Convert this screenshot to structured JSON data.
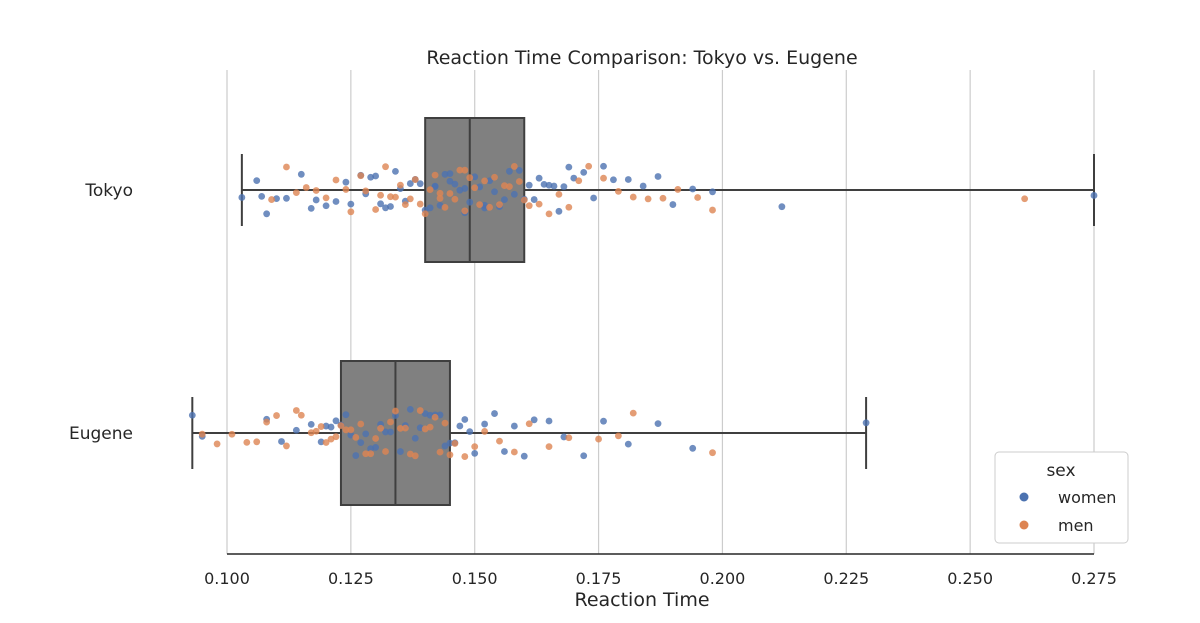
{
  "chart_data": {
    "type": "box",
    "title": "Reaction Time Comparison: Tokyo vs. Eugene",
    "xlabel": "Reaction Time",
    "ylabel": "",
    "xlim": [
      0.093,
      0.276
    ],
    "xticks": [
      0.1,
      0.125,
      0.15,
      0.175,
      0.2,
      0.225,
      0.25,
      0.275
    ],
    "xtick_labels": [
      "0.100",
      "0.125",
      "0.150",
      "0.175",
      "0.200",
      "0.225",
      "0.250",
      "0.275"
    ],
    "categories": [
      "Tokyo",
      "Eugene"
    ],
    "grid": "vertical",
    "box_color": "#808080",
    "boxes": [
      {
        "category": "Tokyo",
        "whisker_low": 0.103,
        "q1": 0.14,
        "median": 0.149,
        "q3": 0.16,
        "whisker_high": 0.275
      },
      {
        "category": "Eugene",
        "whisker_low": 0.093,
        "q1": 0.123,
        "median": 0.134,
        "q3": 0.145,
        "whisker_high": 0.229
      }
    ],
    "legend": {
      "title": "sex",
      "position": "lower-right",
      "entries": [
        {
          "label": "women",
          "color": "#4c72b0"
        },
        {
          "label": "men",
          "color": "#dd8452"
        }
      ]
    },
    "points": [
      {
        "category": "Tokyo",
        "sex": "women",
        "values": [
          0.103,
          0.106,
          0.107,
          0.108,
          0.11,
          0.112,
          0.115,
          0.117,
          0.118,
          0.12,
          0.122,
          0.124,
          0.125,
          0.127,
          0.128,
          0.129,
          0.13,
          0.131,
          0.132,
          0.133,
          0.134,
          0.135,
          0.136,
          0.137,
          0.138,
          0.139,
          0.14,
          0.141,
          0.142,
          0.142,
          0.143,
          0.144,
          0.145,
          0.145,
          0.146,
          0.147,
          0.148,
          0.148,
          0.149,
          0.15,
          0.151,
          0.152,
          0.152,
          0.153,
          0.154,
          0.155,
          0.156,
          0.157,
          0.158,
          0.159,
          0.16,
          0.161,
          0.162,
          0.163,
          0.164,
          0.165,
          0.166,
          0.167,
          0.168,
          0.169,
          0.17,
          0.172,
          0.174,
          0.176,
          0.178,
          0.181,
          0.184,
          0.187,
          0.19,
          0.194,
          0.198,
          0.212,
          0.275
        ]
      },
      {
        "category": "Tokyo",
        "sex": "men",
        "values": [
          0.109,
          0.112,
          0.114,
          0.116,
          0.118,
          0.12,
          0.122,
          0.124,
          0.125,
          0.127,
          0.128,
          0.13,
          0.131,
          0.132,
          0.133,
          0.134,
          0.135,
          0.136,
          0.137,
          0.138,
          0.139,
          0.14,
          0.141,
          0.142,
          0.143,
          0.143,
          0.144,
          0.145,
          0.146,
          0.147,
          0.148,
          0.148,
          0.149,
          0.15,
          0.151,
          0.152,
          0.153,
          0.154,
          0.155,
          0.156,
          0.157,
          0.158,
          0.159,
          0.16,
          0.161,
          0.163,
          0.165,
          0.167,
          0.169,
          0.171,
          0.173,
          0.176,
          0.179,
          0.182,
          0.185,
          0.188,
          0.191,
          0.195,
          0.198,
          0.261
        ]
      },
      {
        "category": "Eugene",
        "sex": "women",
        "values": [
          0.093,
          0.095,
          0.108,
          0.111,
          0.114,
          0.117,
          0.119,
          0.12,
          0.121,
          0.122,
          0.123,
          0.124,
          0.125,
          0.126,
          0.127,
          0.128,
          0.129,
          0.13,
          0.131,
          0.132,
          0.133,
          0.134,
          0.135,
          0.136,
          0.137,
          0.138,
          0.139,
          0.14,
          0.141,
          0.142,
          0.143,
          0.144,
          0.145,
          0.146,
          0.147,
          0.148,
          0.149,
          0.15,
          0.152,
          0.154,
          0.156,
          0.158,
          0.16,
          0.162,
          0.165,
          0.168,
          0.172,
          0.176,
          0.181,
          0.187,
          0.194,
          0.229
        ]
      },
      {
        "category": "Eugene",
        "sex": "men",
        "values": [
          0.095,
          0.098,
          0.101,
          0.104,
          0.106,
          0.108,
          0.11,
          0.112,
          0.114,
          0.115,
          0.117,
          0.118,
          0.119,
          0.12,
          0.121,
          0.122,
          0.123,
          0.124,
          0.125,
          0.126,
          0.127,
          0.128,
          0.129,
          0.13,
          0.131,
          0.132,
          0.133,
          0.134,
          0.135,
          0.136,
          0.137,
          0.138,
          0.139,
          0.14,
          0.141,
          0.142,
          0.143,
          0.144,
          0.145,
          0.146,
          0.148,
          0.15,
          0.152,
          0.155,
          0.158,
          0.161,
          0.165,
          0.169,
          0.175,
          0.179,
          0.182,
          0.198
        ]
      }
    ]
  }
}
